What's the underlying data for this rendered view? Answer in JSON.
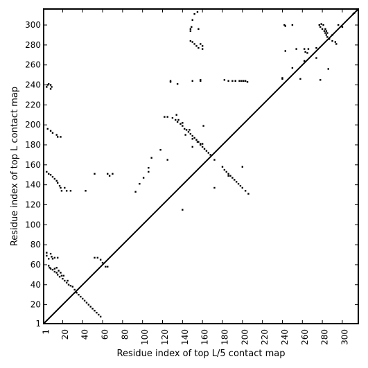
{
  "chart_data": {
    "type": "heatmap",
    "title": "",
    "xlabel": "Residue index of top L/5 contact map",
    "ylabel": "Residue index of top L contact map",
    "xlim": [
      1,
      316
    ],
    "ylim": [
      1,
      316
    ],
    "x_ticks": [
      1,
      20,
      40,
      60,
      80,
      100,
      120,
      140,
      160,
      180,
      200,
      220,
      240,
      260,
      280,
      300
    ],
    "y_ticks": [
      1,
      20,
      40,
      60,
      80,
      100,
      120,
      140,
      160,
      180,
      200,
      220,
      240,
      260,
      280,
      300
    ],
    "x_tick_labels": [
      "1",
      "20",
      "40",
      "60",
      "80",
      "100",
      "120",
      "140",
      "160",
      "180",
      "200",
      "220",
      "240",
      "260",
      "280",
      "300"
    ],
    "y_tick_labels": [
      "1",
      "20",
      "40",
      "60",
      "80",
      "100",
      "120",
      "140",
      "160",
      "180",
      "200",
      "220",
      "240",
      "260",
      "280",
      "300"
    ],
    "diagonal": true,
    "grid": false,
    "upper_contacts": [
      [
        311,
        311
      ],
      [
        312,
        312
      ],
      [
        160,
        181
      ],
      [
        150,
        178
      ],
      [
        161,
        199
      ],
      [
        147,
        195
      ],
      [
        118,
        175
      ],
      [
        125,
        165
      ],
      [
        109,
        167
      ],
      [
        106,
        153
      ],
      [
        101,
        147
      ],
      [
        97,
        141
      ],
      [
        93,
        133
      ],
      [
        140,
        115
      ],
      [
        172,
        137
      ],
      [
        186,
        149
      ],
      [
        200,
        158
      ],
      [
        128,
        243
      ],
      [
        135,
        241
      ],
      [
        158,
        245
      ],
      [
        182,
        245
      ],
      [
        193,
        244
      ],
      [
        201,
        244
      ],
      [
        240,
        246
      ],
      [
        258,
        246
      ],
      [
        278,
        245
      ],
      [
        286,
        256
      ],
      [
        250,
        300
      ],
      [
        254,
        276
      ],
      [
        262,
        264
      ],
      [
        274,
        277
      ],
      [
        290,
        290
      ],
      [
        296,
        300
      ],
      [
        300,
        298
      ]
    ],
    "lower_contacts": [
      [
        4,
        238
      ],
      [
        5,
        240
      ],
      [
        6,
        241
      ],
      [
        8,
        236
      ],
      [
        8,
        240
      ],
      [
        9,
        238
      ],
      [
        5,
        196
      ],
      [
        8,
        194
      ],
      [
        10,
        192
      ],
      [
        14,
        190
      ],
      [
        15,
        188
      ],
      [
        18,
        188
      ],
      [
        4,
        153
      ],
      [
        6,
        151
      ],
      [
        8,
        150
      ],
      [
        10,
        148
      ],
      [
        12,
        146
      ],
      [
        14,
        144
      ],
      [
        15,
        142
      ],
      [
        17,
        139
      ],
      [
        18,
        137
      ],
      [
        19,
        134
      ],
      [
        22,
        137
      ],
      [
        24,
        134
      ],
      [
        28,
        134
      ],
      [
        43,
        134
      ],
      [
        52,
        151
      ],
      [
        65,
        151
      ],
      [
        67,
        149
      ],
      [
        70,
        151
      ],
      [
        106,
        157
      ],
      [
        4,
        72
      ],
      [
        4,
        69
      ],
      [
        6,
        66
      ],
      [
        8,
        71
      ],
      [
        9,
        68
      ],
      [
        10,
        66
      ],
      [
        12,
        67
      ],
      [
        15,
        67
      ],
      [
        6,
        59
      ],
      [
        7,
        57
      ],
      [
        8,
        56
      ],
      [
        10,
        55
      ],
      [
        12,
        56
      ],
      [
        12,
        53
      ],
      [
        14,
        57
      ],
      [
        14,
        52
      ],
      [
        15,
        50
      ],
      [
        16,
        54
      ],
      [
        17,
        48
      ],
      [
        18,
        52
      ],
      [
        19,
        49
      ],
      [
        20,
        46
      ],
      [
        21,
        49
      ],
      [
        22,
        44
      ],
      [
        24,
        42
      ],
      [
        25,
        44
      ],
      [
        26,
        40
      ],
      [
        28,
        39
      ],
      [
        30,
        38
      ],
      [
        32,
        35
      ],
      [
        34,
        32
      ],
      [
        36,
        30
      ],
      [
        38,
        28
      ],
      [
        40,
        26
      ],
      [
        42,
        24
      ],
      [
        44,
        22
      ],
      [
        46,
        20
      ],
      [
        48,
        18
      ],
      [
        50,
        16
      ],
      [
        52,
        14
      ],
      [
        54,
        12
      ],
      [
        56,
        10
      ],
      [
        58,
        8
      ],
      [
        52,
        67
      ],
      [
        55,
        67
      ],
      [
        58,
        65
      ],
      [
        60,
        62
      ],
      [
        63,
        58
      ],
      [
        65,
        58
      ],
      [
        122,
        208
      ],
      [
        125,
        208
      ],
      [
        130,
        207
      ],
      [
        133,
        205
      ],
      [
        135,
        203
      ],
      [
        138,
        201
      ],
      [
        140,
        199
      ],
      [
        142,
        196
      ],
      [
        144,
        195
      ],
      [
        146,
        193
      ],
      [
        148,
        191
      ],
      [
        150,
        189
      ],
      [
        152,
        187
      ],
      [
        154,
        185
      ],
      [
        156,
        183
      ],
      [
        158,
        181
      ],
      [
        160,
        178
      ],
      [
        162,
        176
      ],
      [
        164,
        174
      ],
      [
        166,
        172
      ],
      [
        168,
        170
      ],
      [
        172,
        165
      ],
      [
        134,
        210
      ],
      [
        136,
        205
      ],
      [
        140,
        202
      ],
      [
        143,
        190
      ],
      [
        150,
        186
      ],
      [
        155,
        183
      ],
      [
        158,
        180
      ],
      [
        180,
        158
      ],
      [
        182,
        155
      ],
      [
        184,
        153
      ],
      [
        186,
        151
      ],
      [
        188,
        149
      ],
      [
        190,
        147
      ],
      [
        192,
        145
      ],
      [
        194,
        143
      ],
      [
        196,
        141
      ],
      [
        198,
        139
      ],
      [
        200,
        137
      ],
      [
        203,
        134
      ],
      [
        206,
        131
      ],
      [
        128,
        244
      ],
      [
        150,
        244
      ],
      [
        158,
        244
      ],
      [
        186,
        244
      ],
      [
        190,
        244
      ],
      [
        193,
        244
      ],
      [
        197,
        244
      ],
      [
        199,
        244
      ],
      [
        201,
        244
      ],
      [
        203,
        244
      ],
      [
        205,
        243
      ],
      [
        148,
        294
      ],
      [
        148,
        296
      ],
      [
        149,
        298
      ],
      [
        150,
        305
      ],
      [
        152,
        311
      ],
      [
        155,
        313
      ],
      [
        156,
        296
      ],
      [
        148,
        284
      ],
      [
        150,
        283
      ],
      [
        152,
        281
      ],
      [
        154,
        279
      ],
      [
        156,
        277
      ],
      [
        158,
        281
      ],
      [
        160,
        279
      ],
      [
        160,
        276
      ],
      [
        240,
        247
      ],
      [
        243,
        274
      ],
      [
        250,
        257
      ],
      [
        262,
        276
      ],
      [
        263,
        273
      ],
      [
        265,
        272
      ],
      [
        266,
        276
      ],
      [
        274,
        267
      ],
      [
        277,
        300
      ],
      [
        278,
        298
      ],
      [
        280,
        296
      ],
      [
        282,
        294
      ],
      [
        283,
        292
      ],
      [
        284,
        290
      ],
      [
        285,
        288
      ],
      [
        287,
        286
      ],
      [
        290,
        284
      ],
      [
        293,
        283
      ],
      [
        294,
        281
      ],
      [
        242,
        300
      ],
      [
        243,
        299
      ],
      [
        279,
        301
      ],
      [
        281,
        300
      ],
      [
        283,
        296
      ],
      [
        284,
        294
      ],
      [
        285,
        292
      ]
    ]
  }
}
